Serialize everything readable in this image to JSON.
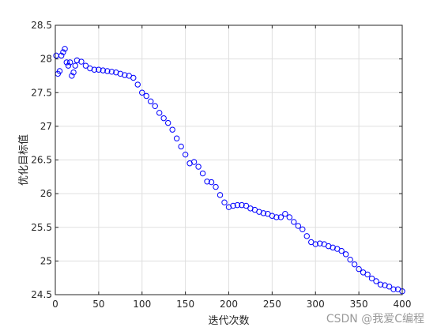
{
  "chart_data": {
    "type": "scatter",
    "title": "",
    "xlabel": "迭代次数",
    "ylabel": "优化目标值",
    "xlim": [
      0,
      400
    ],
    "ylim": [
      24.5,
      28.5
    ],
    "grid": true,
    "marker": "open-circle",
    "color": "#0000ff",
    "x_ticks": [
      0,
      50,
      100,
      150,
      200,
      250,
      300,
      350,
      400
    ],
    "x_tick_labels": [
      "0",
      "50",
      "100",
      "150",
      "200",
      "250",
      "300",
      "350",
      "400"
    ],
    "y_ticks": [
      24.5,
      25,
      25.5,
      26,
      26.5,
      27,
      27.5,
      28,
      28.5
    ],
    "y_tick_labels": [
      "24.5",
      "25",
      "25.5",
      "26",
      "26.5",
      "27",
      "27.5",
      "28",
      "28.5"
    ],
    "series": [
      {
        "x": [
          1,
          3,
          5,
          7,
          9,
          11,
          13,
          15,
          17,
          19,
          21,
          23,
          25,
          30,
          35,
          40,
          45,
          50,
          55,
          60,
          65,
          70,
          75,
          80,
          85,
          90,
          95,
          100,
          105,
          110,
          115,
          120,
          125,
          130,
          135,
          140,
          145,
          150,
          155,
          160,
          165,
          170,
          175,
          180,
          185,
          190,
          195,
          200,
          205,
          210,
          215,
          220,
          225,
          230,
          235,
          240,
          245,
          250,
          255,
          260,
          265,
          270,
          275,
          280,
          285,
          290,
          295,
          300,
          305,
          310,
          315,
          320,
          325,
          330,
          335,
          340,
          345,
          350,
          355,
          360,
          365,
          370,
          375,
          380,
          385,
          390,
          395,
          400
        ],
        "y": [
          28.05,
          27.78,
          27.82,
          28.05,
          28.1,
          28.15,
          27.95,
          27.9,
          27.95,
          27.75,
          27.8,
          27.9,
          27.98,
          27.96,
          27.9,
          27.86,
          27.84,
          27.84,
          27.83,
          27.82,
          27.81,
          27.8,
          27.78,
          27.76,
          27.75,
          27.72,
          27.62,
          27.5,
          27.45,
          27.37,
          27.3,
          27.2,
          27.12,
          27.05,
          26.95,
          26.82,
          26.7,
          26.58,
          26.45,
          26.47,
          26.4,
          26.3,
          26.18,
          26.17,
          26.1,
          25.98,
          25.87,
          25.8,
          25.82,
          25.83,
          25.83,
          25.82,
          25.78,
          25.76,
          25.73,
          25.71,
          25.7,
          25.67,
          25.65,
          25.65,
          25.7,
          25.65,
          25.58,
          25.52,
          25.47,
          25.37,
          25.28,
          25.25,
          25.26,
          25.25,
          25.22,
          25.2,
          25.18,
          25.15,
          25.1,
          25.02,
          24.95,
          24.88,
          24.83,
          24.8,
          24.74,
          24.7,
          24.65,
          24.64,
          24.62,
          24.58,
          24.58,
          24.55
        ]
      }
    ]
  },
  "watermark": "CSDN @我爱C编程"
}
